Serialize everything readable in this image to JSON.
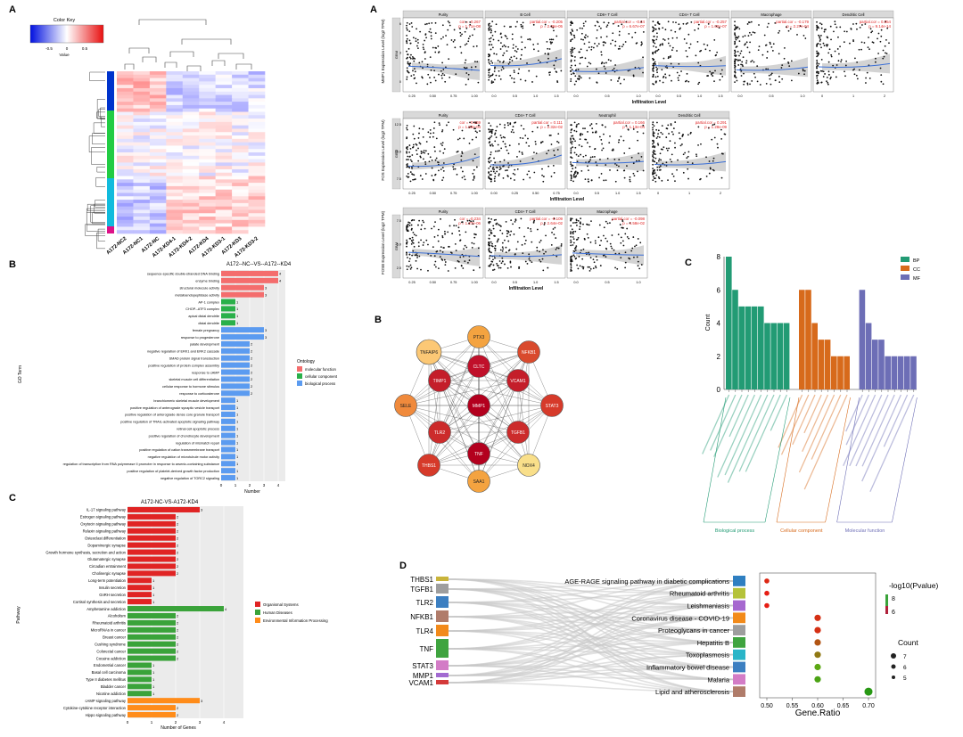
{
  "panels": {
    "left_heatmap": "A",
    "left_go": "B",
    "left_kegg": "C",
    "right_scatter": "A",
    "right_network": "B",
    "right_go_bar": "C",
    "right_sankey": "D"
  },
  "heatmap": {
    "color_key_title": "Color Key",
    "value_label": "Value",
    "key_ticks": [
      "-0.5",
      "0",
      "0.5"
    ],
    "columns": [
      "A172-NC2",
      "A172-NC1",
      "A172-NC",
      "A172-KD4-1",
      "A172-KD4-2",
      "A172-KD4",
      "A172-KD3-1",
      "A172-KD3",
      "A172-KD3-2"
    ],
    "row_group_colors": [
      "#0033cc",
      "#22cc44",
      "#11bbdd",
      "#dd1188"
    ]
  },
  "go_bar": {
    "title": "A172--NC--VS--A172--KD4",
    "xlabel": "Number",
    "ylabel": "GO Term",
    "legend_title": "Ontology",
    "legend": [
      {
        "name": "molecular function",
        "color": "#f46d6d"
      },
      {
        "name": "cellular component",
        "color": "#2ab04a"
      },
      {
        "name": "biological process",
        "color": "#5b9bf0"
      }
    ],
    "xticks": [
      "0",
      "1",
      "2",
      "3",
      "4"
    ],
    "terms": [
      {
        "label": "sequence-specific double-stranded DNA binding",
        "value": 4,
        "cat": 0
      },
      {
        "label": "enzyme binding",
        "value": 4,
        "cat": 0
      },
      {
        "label": "structural molecule activity",
        "value": 3,
        "cat": 0
      },
      {
        "label": "metalloendopeptidase activity",
        "value": 3,
        "cat": 0
      },
      {
        "label": "AP-1 complex",
        "value": 1,
        "cat": 1
      },
      {
        "label": "CHOP--ATF3 complex",
        "value": 1,
        "cat": 1
      },
      {
        "label": "apical distal dendrite",
        "value": 1,
        "cat": 1
      },
      {
        "label": "distal dendrite",
        "value": 1,
        "cat": 1
      },
      {
        "label": "female pregnancy",
        "value": 3,
        "cat": 2
      },
      {
        "label": "response to progesterone",
        "value": 3,
        "cat": 2
      },
      {
        "label": "palate development",
        "value": 2,
        "cat": 2
      },
      {
        "label": "negative regulation of ERK1 and ERK2 cascade",
        "value": 2,
        "cat": 2
      },
      {
        "label": "SMAD protein signal transduction",
        "value": 2,
        "cat": 2
      },
      {
        "label": "positive regulation of protein complex assembly",
        "value": 2,
        "cat": 2
      },
      {
        "label": "response to cAMP",
        "value": 2,
        "cat": 2
      },
      {
        "label": "skeletal muscle cell differentiation",
        "value": 2,
        "cat": 2
      },
      {
        "label": "cellular response to hormone stimulus",
        "value": 2,
        "cat": 2
      },
      {
        "label": "response to corticosterone",
        "value": 2,
        "cat": 2
      },
      {
        "label": "branchiomeric skeletal muscle development",
        "value": 1,
        "cat": 2
      },
      {
        "label": "positive regulation of anterograde synaptic vesicle transport",
        "value": 1,
        "cat": 2
      },
      {
        "label": "positive regulation of anterograde dense core granule transport",
        "value": 1,
        "cat": 2
      },
      {
        "label": "positive regulation of TRAIL-activated apoptotic signaling pathway",
        "value": 1,
        "cat": 2
      },
      {
        "label": "retinal cell apoptotic process",
        "value": 1,
        "cat": 2
      },
      {
        "label": "positive regulation of chondrocyte development",
        "value": 1,
        "cat": 2
      },
      {
        "label": "regulation of mismatch repair",
        "value": 1,
        "cat": 2
      },
      {
        "label": "positive regulation of cation transmembrane transport",
        "value": 1,
        "cat": 2
      },
      {
        "label": "negative regulation of microtubule motor activity",
        "value": 1,
        "cat": 2
      },
      {
        "label": "regulation of transcription from RNA polymerase II promoter in response to arsenic-containing substance",
        "value": 1,
        "cat": 2
      },
      {
        "label": "positive regulation of platelet-derived growth factor production",
        "value": 1,
        "cat": 2
      },
      {
        "label": "negative regulation of TORC2 signaling",
        "value": 1,
        "cat": 2
      }
    ]
  },
  "kegg_bar": {
    "title": "A172-NC-VS-A172-KD4",
    "xlabel": "Number of Genes",
    "ylabel": "Pathway",
    "xticks": [
      "0",
      "1",
      "2",
      "3",
      "4"
    ],
    "legend": [
      {
        "name": "Organismal Systems",
        "color": "#e02424"
      },
      {
        "name": "Human Diseases",
        "color": "#3aa33a"
      },
      {
        "name": "Environmental Information Processing",
        "color": "#ff8c1a"
      }
    ],
    "terms": [
      {
        "label": "IL-17 signaling pathway",
        "value": 3,
        "cat": 0
      },
      {
        "label": "Estrogen signaling pathway",
        "value": 2,
        "cat": 0
      },
      {
        "label": "Oxytocin signaling pathway",
        "value": 2,
        "cat": 0
      },
      {
        "label": "Relaxin signaling pathway",
        "value": 2,
        "cat": 0
      },
      {
        "label": "Osteoclast differentiation",
        "value": 2,
        "cat": 0
      },
      {
        "label": "Dopaminergic synapse",
        "value": 2,
        "cat": 0
      },
      {
        "label": "Growth hormone synthesis, secretion and action",
        "value": 2,
        "cat": 0
      },
      {
        "label": "Glutamatergic synapse",
        "value": 2,
        "cat": 0
      },
      {
        "label": "Circadian entrainment",
        "value": 2,
        "cat": 0
      },
      {
        "label": "Cholinergic synapse",
        "value": 2,
        "cat": 0
      },
      {
        "label": "Long-term potentiation",
        "value": 1,
        "cat": 0
      },
      {
        "label": "Insulin secretion",
        "value": 1,
        "cat": 0
      },
      {
        "label": "GnRH secretion",
        "value": 1,
        "cat": 0
      },
      {
        "label": "Cortisol synthesis and secretion",
        "value": 1,
        "cat": 0
      },
      {
        "label": "Amphetamine addiction",
        "value": 4,
        "cat": 1
      },
      {
        "label": "Alcoholism",
        "value": 2,
        "cat": 1
      },
      {
        "label": "Rheumatoid arthritis",
        "value": 2,
        "cat": 1
      },
      {
        "label": "MicroRNAs in cancer",
        "value": 2,
        "cat": 1
      },
      {
        "label": "Breast cancer",
        "value": 2,
        "cat": 1
      },
      {
        "label": "Cushing syndrome",
        "value": 2,
        "cat": 1
      },
      {
        "label": "Colorectal cancer",
        "value": 2,
        "cat": 1
      },
      {
        "label": "Cocaine addiction",
        "value": 2,
        "cat": 1
      },
      {
        "label": "Endometrial cancer",
        "value": 1,
        "cat": 1
      },
      {
        "label": "Basal cell carcinoma",
        "value": 1,
        "cat": 1
      },
      {
        "label": "Type II diabetes mellitus",
        "value": 1,
        "cat": 1
      },
      {
        "label": "Bladder cancer",
        "value": 1,
        "cat": 1
      },
      {
        "label": "Nicotine addiction",
        "value": 1,
        "cat": 1
      },
      {
        "label": "cAMP signaling pathway",
        "value": 3,
        "cat": 2
      },
      {
        "label": "Cytokine-cytokine receptor interaction",
        "value": 2,
        "cat": 2
      },
      {
        "label": "Hippo signaling pathway",
        "value": 2,
        "cat": 2
      }
    ]
  },
  "scatter": {
    "xlabel": "Infiltration Level",
    "rows": [
      {
        "ylabel": "MMP1 Expression Level (log2 TPM)",
        "side": "GBM",
        "yticks": [
          "0",
          "3",
          "6"
        ],
        "panels": [
          {
            "title": "Purity",
            "stats": [
              "cor = -0.267",
              "p = 1.71e-08"
            ],
            "xticks": [
              "0.25",
              "0.50",
              "0.75",
              "1.00"
            ]
          },
          {
            "title": "B Cell",
            "stats": [
              "partial.cor = -0.205",
              "p = 2.36e-05"
            ],
            "xticks": [
              "0.0",
              "0.5",
              "1.0",
              "1.5"
            ]
          },
          {
            "title": "CD8+ T Cell",
            "stats": [
              "partial.cor = -0.24",
              "p = 6.67e-07"
            ],
            "xticks": [
              "0.0",
              "0.5",
              "1.0"
            ]
          },
          {
            "title": "CD4+ T Cell",
            "stats": [
              "partial.cor = -0.257",
              "p = 1.02e-07"
            ],
            "xticks": [
              "0.0",
              "0.5",
              "1.0",
              "1.5"
            ]
          },
          {
            "title": "Macrophage",
            "stats": [
              "partial.cor = -0.179",
              "p = 2.27e-04"
            ],
            "xticks": [
              "0.0",
              "0.5",
              "1.0"
            ]
          },
          {
            "title": "Dendritic Cell",
            "stats": [
              "partial.cor = 0.354",
              "p = 9.14e-14"
            ],
            "xticks": [
              "0",
              "1",
              "2"
            ]
          }
        ]
      },
      {
        "ylabel": "FOS Expression Level (log2 TPM)",
        "side": "GBM",
        "yticks": [
          "7.5",
          "10.0",
          "12.5"
        ],
        "panels": [
          {
            "title": "Purity",
            "stats": [
              "cor = -0.169",
              "p = 1.53e-04"
            ],
            "xticks": [
              "0.25",
              "0.50",
              "0.75",
              "1.00"
            ]
          },
          {
            "title": "CD4+ T Cell",
            "stats": [
              "partial.cor = 0.111",
              "p = 2.32e-02"
            ],
            "xticks": [
              "0.00",
              "0.25",
              "0.50",
              "0.75"
            ]
          },
          {
            "title": "Neutrophil",
            "stats": [
              "partial.cor = 0.166",
              "p = 1.13e-04"
            ],
            "xticks": [
              "0.0",
              "0.5",
              "1.0",
              "1.5"
            ]
          },
          {
            "title": "Dendritic Cell",
            "stats": [
              "partial.cor = 0.291",
              "p = 1.28e-09"
            ],
            "xticks": [
              "0",
              "1",
              "2"
            ]
          }
        ]
      },
      {
        "ylabel": "FOSB Expression Level (log2 TPM)",
        "side": "GBM",
        "yticks": [
          "2.5",
          "5.0",
          "7.5"
        ],
        "panels": [
          {
            "title": "Purity",
            "stats": [
              "cor = -0.234",
              "p = 1.27e-06"
            ],
            "xticks": [
              "0.25",
              "0.50",
              "0.75",
              "1.00"
            ]
          },
          {
            "title": "CD4+ T Cell",
            "stats": [
              "partial.cor = -0.109",
              "p = 2.64e-02"
            ],
            "xticks": [
              "0.0",
              "0.5",
              "1.0",
              "1.5"
            ]
          },
          {
            "title": "Macrophage",
            "stats": [
              "partial.cor = -0.098",
              "p = 4.58e-02"
            ],
            "xticks": [
              "0.0",
              "0.5",
              "1.0"
            ]
          }
        ]
      }
    ]
  },
  "network": {
    "nodes": [
      {
        "id": "MMP1",
        "fill": "#b3001e"
      },
      {
        "id": "CLTC",
        "fill": "#c0102a"
      },
      {
        "id": "TIMP1",
        "fill": "#c41e2a"
      },
      {
        "id": "VCAM1",
        "fill": "#c41e2a"
      },
      {
        "id": "TLR2",
        "fill": "#cc2b2b"
      },
      {
        "id": "TGFB1",
        "fill": "#cc2b2b"
      },
      {
        "id": "TNF",
        "fill": "#b3001e"
      },
      {
        "id": "PTX3",
        "fill": "#f4a340"
      },
      {
        "id": "NFKB1",
        "fill": "#d94a2d"
      },
      {
        "id": "STAT3",
        "fill": "#d63a2a"
      },
      {
        "id": "NOX4",
        "fill": "#f9df8a"
      },
      {
        "id": "SAA1",
        "fill": "#f4a340"
      },
      {
        "id": "THBS1",
        "fill": "#d63a2a"
      },
      {
        "id": "SELE",
        "fill": "#f08a3c"
      },
      {
        "id": "TNFAIP6",
        "fill": "#fcc875"
      }
    ]
  },
  "go_bars": {
    "chart_data": {
      "type": "bar",
      "ylabel": "Count",
      "ylim": [
        0,
        8
      ],
      "yticks": [
        "0",
        "2",
        "4",
        "6",
        "8"
      ],
      "groups": [
        {
          "name": "BP",
          "label": "Biological process",
          "color": "#229b74",
          "values": [
            8,
            6,
            5,
            5,
            5,
            5,
            4,
            4,
            4,
            4
          ]
        },
        {
          "name": "CC",
          "label": "Cellular component",
          "color": "#d76a1b",
          "values": [
            6,
            6,
            4,
            3,
            3,
            2,
            2,
            2
          ]
        },
        {
          "name": "MF",
          "label": "Molecular function",
          "color": "#6d6eb6",
          "values": [
            6,
            4,
            3,
            3,
            2,
            2,
            2,
            2,
            2
          ]
        }
      ]
    }
  },
  "sankey": {
    "genes": [
      {
        "name": "THBS1",
        "color": "#c9b43a"
      },
      {
        "name": "TGFB1",
        "color": "#9e9e9e"
      },
      {
        "name": "TLR2",
        "color": "#3c7fc1"
      },
      {
        "name": "NFKB1",
        "color": "#b07c6a"
      },
      {
        "name": "TLR4",
        "color": "#f28a1a"
      },
      {
        "name": "TNF",
        "color": "#3fa43f"
      },
      {
        "name": "STAT3",
        "color": "#d37cc6"
      },
      {
        "name": "MMP1",
        "color": "#a26ad1"
      },
      {
        "name": "VCAM1",
        "color": "#d43a3a"
      }
    ],
    "pathways": [
      {
        "name": "AGE-RAGE signaling pathway in diabetic complications",
        "color": "#2f7fc1",
        "ratio": 0.5,
        "p": 6.1
      },
      {
        "name": "Rheumatoid arthritis",
        "color": "#b5c23a",
        "ratio": 0.5,
        "p": 6.0
      },
      {
        "name": "Leishmaniasis",
        "color": "#a668cf",
        "ratio": 0.5,
        "p": 6.0
      },
      {
        "name": "Coronavirus disease - COVID-19",
        "color": "#f28a1a",
        "ratio": 0.6,
        "p": 6.2
      },
      {
        "name": "Proteoglycans in cancer",
        "color": "#9e9e9e",
        "ratio": 0.6,
        "p": 6.2
      },
      {
        "name": "Hepatitis B",
        "color": "#3fa43f",
        "ratio": 0.6,
        "p": 6.6
      },
      {
        "name": "Toxoplasmosis",
        "color": "#2ab5c8",
        "ratio": 0.6,
        "p": 7.0
      },
      {
        "name": "Inflammatory bowel disease",
        "color": "#3c7fc1",
        "ratio": 0.6,
        "p": 7.6
      },
      {
        "name": "Malaria",
        "color": "#d37cc6",
        "ratio": 0.6,
        "p": 7.8
      },
      {
        "name": "Lipid and atherosclerosis",
        "color": "#b07c6a",
        "ratio": 0.7,
        "p": 8.2
      }
    ],
    "dot_xlabel": "Gene.Ratio",
    "dot_xticks": [
      "0.50",
      "0.55",
      "0.60",
      "0.65",
      "0.70"
    ],
    "legend_p_title": "-log10(Pvalue)",
    "legend_p_ticks": [
      "8",
      "6"
    ],
    "legend_count_title": "Count",
    "legend_count_ticks": [
      "7",
      "6",
      "5"
    ]
  }
}
